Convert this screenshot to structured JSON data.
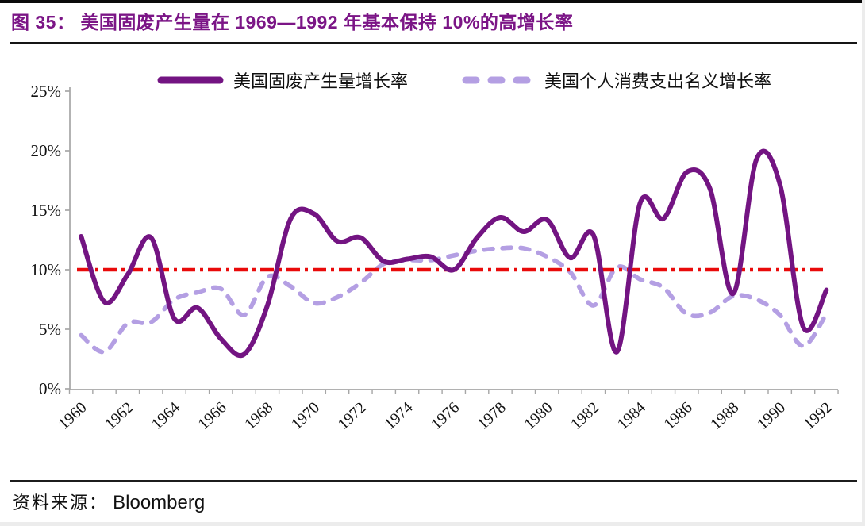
{
  "title": {
    "text": "图 35：  美国固废产生量在 1969—1992 年基本保持 10%的高增长率"
  },
  "source": {
    "label": "资料来源：",
    "value": "Bloomberg"
  },
  "colors": {
    "title": "#7B1586",
    "solid_line": "#731482",
    "dashed_line": "#B49FE3",
    "reference_line": "#E90A0A",
    "axis": "#A6A6A6",
    "text": "#111111"
  },
  "chart_data": {
    "type": "line",
    "title": "图 35：美国固废产生量在 1969—1992 年基本保持 10%的高增长率",
    "x": [
      1960,
      1961,
      1962,
      1963,
      1964,
      1965,
      1966,
      1967,
      1968,
      1969,
      1970,
      1971,
      1972,
      1973,
      1974,
      1975,
      1976,
      1977,
      1978,
      1979,
      1980,
      1981,
      1982,
      1983,
      1984,
      1985,
      1986,
      1987,
      1988,
      1989,
      1990,
      1991,
      1992
    ],
    "series": [
      {
        "name": "美国固废产生量增长率",
        "style": "solid",
        "color": "#731482",
        "values": [
          12.8,
          7.3,
          9.6,
          12.7,
          5.9,
          6.8,
          4.2,
          2.9,
          7.0,
          14.3,
          14.7,
          12.4,
          12.7,
          10.7,
          10.9,
          11.1,
          10.0,
          12.7,
          14.4,
          13.2,
          14.2,
          11.0,
          12.9,
          3.1,
          15.6,
          14.3,
          18.2,
          16.8,
          8.0,
          19.3,
          17.2,
          5.2,
          8.3
        ]
      },
      {
        "name": "美国个人消费支出名义增长率",
        "style": "dashed",
        "color": "#B49FE3",
        "values": [
          4.5,
          3.1,
          5.5,
          5.6,
          7.5,
          8.1,
          8.4,
          6.2,
          9.4,
          8.6,
          7.2,
          7.7,
          8.9,
          10.5,
          10.8,
          10.8,
          11.2,
          11.6,
          11.8,
          11.8,
          11.1,
          9.8,
          7.0,
          10.2,
          9.2,
          8.5,
          6.3,
          6.4,
          7.8,
          7.5,
          6.2,
          3.6,
          6.3
        ]
      }
    ],
    "reference_line": {
      "value": 10,
      "style": "dash-dot",
      "color": "#E90A0A"
    },
    "ylim": [
      0,
      25
    ],
    "ytick_labels": [
      "0%",
      "5%",
      "10%",
      "15%",
      "20%",
      "25%"
    ],
    "xtick_labels": [
      "1960",
      "1962",
      "1964",
      "1966",
      "1968",
      "1970",
      "1972",
      "1974",
      "1976",
      "1978",
      "1980",
      "1982",
      "1984",
      "1986",
      "1988",
      "1990",
      "1992"
    ],
    "xlabel": "",
    "ylabel": "",
    "grid": false,
    "legend_position": "top"
  }
}
